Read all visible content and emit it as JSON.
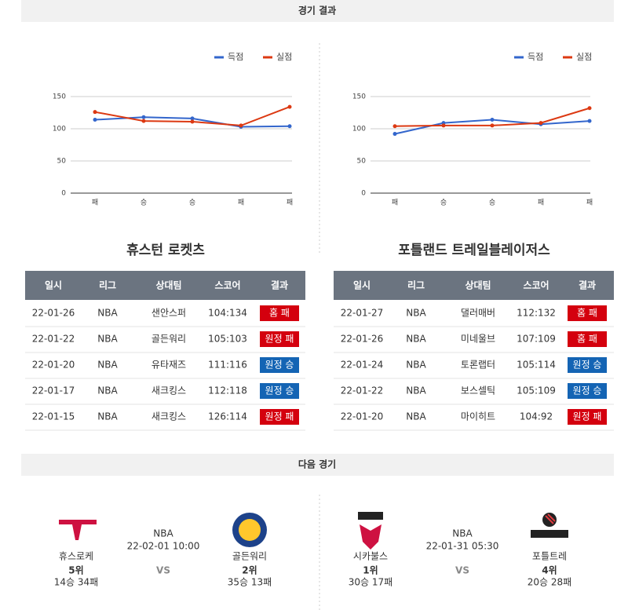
{
  "header": {
    "title": "경기 결과"
  },
  "chart_data": [
    {
      "type": "line",
      "categories": [
        "패",
        "승",
        "승",
        "패",
        "패"
      ],
      "series": [
        {
          "name": "득점",
          "color": "#3366cc",
          "values": [
            114,
            118,
            116,
            103,
            104
          ]
        },
        {
          "name": "실점",
          "color": "#dc3912",
          "values": [
            126,
            112,
            111,
            105,
            134
          ]
        }
      ],
      "ylim": [
        0,
        150
      ],
      "yticks": [
        0,
        50,
        100,
        150
      ],
      "grid": true,
      "legend": "top-right"
    },
    {
      "type": "line",
      "categories": [
        "패",
        "승",
        "승",
        "패",
        "패"
      ],
      "series": [
        {
          "name": "득점",
          "color": "#3366cc",
          "values": [
            92,
            109,
            114,
            107,
            112
          ]
        },
        {
          "name": "실점",
          "color": "#dc3912",
          "values": [
            104,
            105,
            105,
            109,
            132
          ]
        }
      ],
      "ylim": [
        0,
        150
      ],
      "yticks": [
        0,
        50,
        100,
        150
      ],
      "grid": true,
      "legend": "top-right"
    }
  ],
  "teams": [
    {
      "name": "휴스턴 로켓츠",
      "table": {
        "columns": [
          "일시",
          "리그",
          "상대팀",
          "스코어",
          "결과"
        ],
        "rows": [
          [
            "22-01-26",
            "NBA",
            "샌안스퍼",
            "104:134",
            "홈 패"
          ],
          [
            "22-01-22",
            "NBA",
            "골든워리",
            "105:103",
            "원정 패"
          ],
          [
            "22-01-20",
            "NBA",
            "유타재즈",
            "111:116",
            "원정 승"
          ],
          [
            "22-01-17",
            "NBA",
            "새크킹스",
            "112:118",
            "원정 승"
          ],
          [
            "22-01-15",
            "NBA",
            "새크킹스",
            "126:114",
            "원정 패"
          ]
        ],
        "result_colors": [
          "#d4000e",
          "#d4000e",
          "#1464b4",
          "#1464b4",
          "#d4000e"
        ]
      }
    },
    {
      "name": "포틀랜드 트레일블레이저스",
      "table": {
        "columns": [
          "일시",
          "리그",
          "상대팀",
          "스코어",
          "결과"
        ],
        "rows": [
          [
            "22-01-27",
            "NBA",
            "댈러매버",
            "112:132",
            "홈 패"
          ],
          [
            "22-01-26",
            "NBA",
            "미네울브",
            "107:109",
            "홈 패"
          ],
          [
            "22-01-24",
            "NBA",
            "토론랩터",
            "105:114",
            "원정 승"
          ],
          [
            "22-01-22",
            "NBA",
            "보스셀틱",
            "105:109",
            "원정 승"
          ],
          [
            "22-01-20",
            "NBA",
            "마이히트",
            "104:92",
            "원정 패"
          ]
        ],
        "result_colors": [
          "#d4000e",
          "#d4000e",
          "#1464b4",
          "#1464b4",
          "#d4000e"
        ]
      }
    }
  ],
  "next": {
    "title": "다음 경기",
    "games": [
      {
        "league": "NBA",
        "time": "22-02-01 10:00",
        "vs": "VS",
        "home": {
          "name": "휴스로케",
          "rank": "5위",
          "record": "14승 34패"
        },
        "away": {
          "name": "골든워리",
          "rank": "2위",
          "record": "35승 13패"
        }
      },
      {
        "league": "NBA",
        "time": "22-01-31 05:30",
        "vs": "VS",
        "home": {
          "name": "시카불스",
          "rank": "1위",
          "record": "30승 17패"
        },
        "away": {
          "name": "포틀트레",
          "rank": "4위",
          "record": "20승 28패"
        }
      }
    ]
  }
}
